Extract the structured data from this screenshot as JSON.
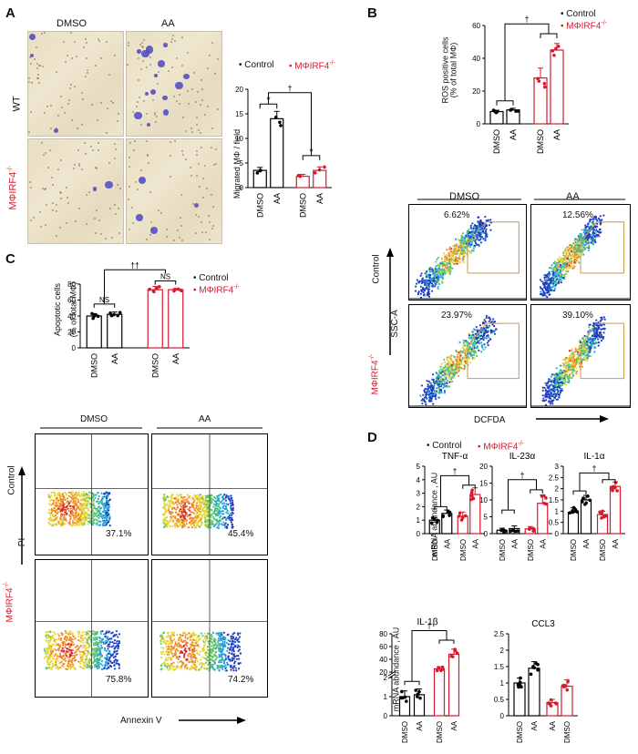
{
  "colors": {
    "control": "#000000",
    "irf4": "#d7192a",
    "gate": "#c79a4a"
  },
  "legend": {
    "control": "Control",
    "irf4": "MΦIRF4",
    "irf4_sup": "-/-"
  },
  "panelA": {
    "letter": "A",
    "col_labels": [
      "DMSO",
      "AA"
    ],
    "row_labels": [
      "WT",
      "MΦIRF4"
    ],
    "row_sup": "-/-",
    "legend_control": "• Control",
    "legend_irf4": "• MΦIRF4",
    "chart_label_y": "Migrated MΦ / field",
    "sig": [
      "*",
      "*",
      "†"
    ]
  },
  "panelB": {
    "letter": "B",
    "legend_control": "• Control",
    "legend_irf4": "• MΦIRF4",
    "ylabel_line1": "ROS positive cells",
    "ylabel_line2": "(% of total MΦ)",
    "sig": "†",
    "flow_col_labels": [
      "DMSO",
      "AA"
    ],
    "flow_row_labels": [
      "Control",
      "MΦIRF4"
    ],
    "flow_row_sup": "-/-",
    "percents": [
      "6.62%",
      "12.56%",
      "23.97%",
      "39.10%"
    ],
    "x_axis": "DCFDA",
    "y_axis": "SSC-A"
  },
  "panelC": {
    "letter": "C",
    "legend_control": "• Control",
    "legend_irf4": "• MΦIRF4",
    "ylabel_line1": "Apoptotic cells",
    "ylabel_line2": "(% of total MΦ)",
    "sig": [
      "NS",
      "NS",
      "††"
    ],
    "flow_col_labels": [
      "DMSO",
      "AA"
    ],
    "flow_row_labels": [
      "Control",
      "MΦIRF4"
    ],
    "flow_row_sup": "-/-",
    "percents": [
      "37.1%",
      "45.4%",
      "75.8%",
      "74.2%"
    ],
    "x_axis": "Annexin V",
    "y_axis": "PI"
  },
  "panelD": {
    "letter": "D",
    "legend_control": "• Control",
    "legend_irf4": "• MΦIRF4",
    "ylabel_top": "mRNA abundance , AU",
    "ylabel_bottom": "mRNA abundance , AU",
    "sig": "†"
  },
  "chart_data": [
    {
      "id": "A-migration",
      "type": "bar",
      "categories": [
        "DMSO",
        "AA",
        "DMSO",
        "AA"
      ],
      "group": [
        "Control",
        "Control",
        "MΦIRF4-/-",
        "MΦIRF4-/-"
      ],
      "values": [
        3.5,
        14,
        2.3,
        3.5
      ],
      "errors": [
        0.6,
        1.5,
        0.4,
        0.7
      ],
      "ylabel": "Migrated MΦ / field",
      "ylim": [
        0,
        20
      ],
      "yticks": [
        0,
        5,
        10,
        15,
        20
      ]
    },
    {
      "id": "B-ros",
      "type": "bar",
      "categories": [
        "DMSO",
        "AA",
        "DMSO",
        "AA"
      ],
      "group": [
        "Control",
        "Control",
        "MΦIRF4-/-",
        "MΦIRF4-/-"
      ],
      "values": [
        7.5,
        8.5,
        28,
        45
      ],
      "errors": [
        0.8,
        1.0,
        6,
        4
      ],
      "ylabel": "ROS positive cells (% of total MΦ)",
      "ylim": [
        0,
        60
      ],
      "yticks": [
        0,
        20,
        40,
        60
      ]
    },
    {
      "id": "C-apoptosis",
      "type": "bar",
      "categories": [
        "DMSO",
        "AA",
        "DMSO",
        "AA"
      ],
      "group": [
        "Control",
        "Control",
        "MΦIRF4-/-",
        "MΦIRF4-/-"
      ],
      "values": [
        40,
        42,
        73,
        73
      ],
      "errors": [
        3,
        3,
        4,
        1.5
      ],
      "ylabel": "Apoptotic cells (% of total MΦ)",
      "ylim": [
        0,
        80
      ],
      "yticks": [
        0,
        20,
        40,
        60,
        80
      ]
    },
    {
      "id": "D-TNF",
      "type": "bar",
      "title": "TNF-α",
      "categories": [
        "DMSO",
        "AA",
        "DMSO",
        "AA"
      ],
      "values": [
        1.0,
        1.5,
        1.3,
        2.9
      ],
      "errors": [
        0.2,
        0.25,
        0.3,
        0.5
      ],
      "ylim": [
        0,
        5
      ],
      "yticks": [
        0,
        1,
        2,
        3,
        4,
        5
      ]
    },
    {
      "id": "D-IL23",
      "type": "bar",
      "title": "IL-23α",
      "categories": [
        "DMSO",
        "AA",
        "DMSO",
        "AA"
      ],
      "values": [
        1.0,
        1.5,
        1.4,
        9.0
      ],
      "errors": [
        0.6,
        0.8,
        0.7,
        2.5
      ],
      "ylim": [
        0,
        20
      ],
      "yticks": [
        0,
        5,
        10,
        15,
        20
      ]
    },
    {
      "id": "D-IL1a",
      "type": "bar",
      "title": "IL-1α",
      "categories": [
        "DMSO",
        "AA",
        "DMSO",
        "AA"
      ],
      "values": [
        0.95,
        1.5,
        0.85,
        2.1
      ],
      "errors": [
        0.2,
        0.2,
        0.15,
        0.2
      ],
      "ylim": [
        0,
        3
      ],
      "yticks": [
        0.0,
        0.5,
        1.0,
        1.5,
        2.0,
        2.5,
        3.0
      ]
    },
    {
      "id": "D-IL1b",
      "type": "bar",
      "title": "IL-1β",
      "categories": [
        "DMSO",
        "AA",
        "DMSO",
        "AA"
      ],
      "values": [
        1.0,
        1.1,
        25,
        48
      ],
      "errors": [
        0.3,
        0.3,
        3,
        8
      ],
      "yticks_low": [
        0,
        1,
        2
      ],
      "yticks_high": [
        20,
        40,
        60,
        80
      ]
    },
    {
      "id": "D-CCL3",
      "type": "bar",
      "title": "CCL3",
      "categories": [
        "DMSO",
        "AA",
        "AA",
        "DMSO"
      ],
      "values": [
        1.0,
        1.45,
        0.4,
        0.9
      ],
      "errors": [
        0.15,
        0.2,
        0.1,
        0.2
      ],
      "ylim": [
        0,
        2.5
      ],
      "yticks": [
        0.0,
        0.5,
        1.0,
        1.5,
        2.0,
        2.5
      ]
    }
  ]
}
